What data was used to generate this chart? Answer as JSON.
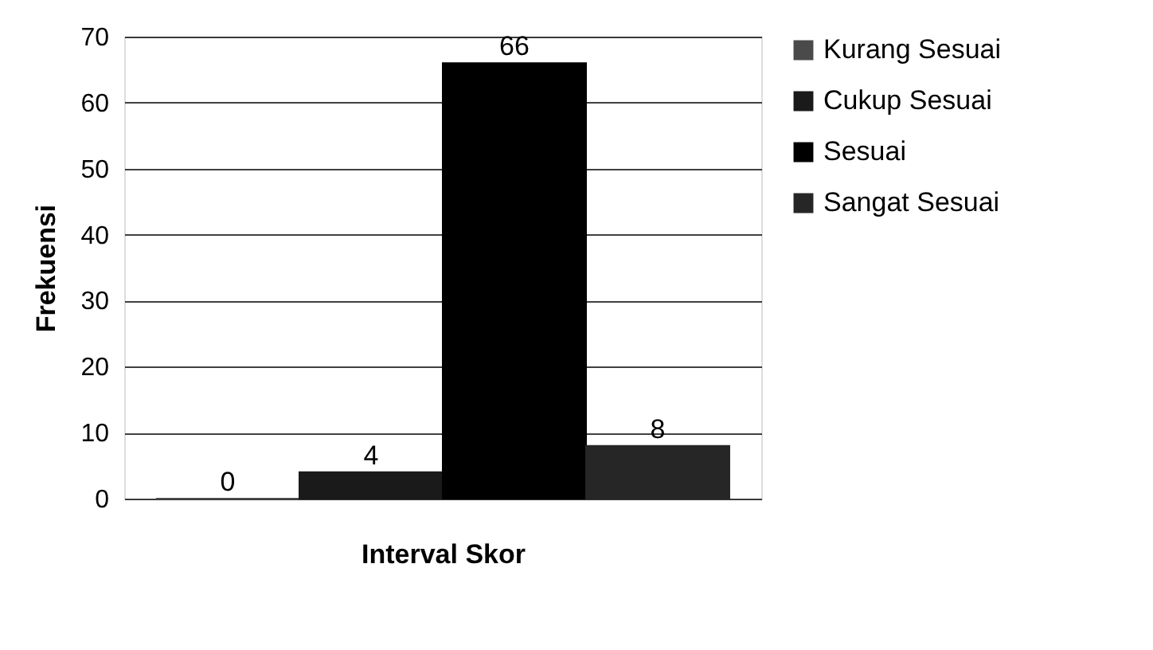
{
  "chart_data": {
    "type": "bar",
    "xlabel": "Interval Skor",
    "ylabel": "Frekuensi",
    "categories": [
      null
    ],
    "series": [
      {
        "name": "Kurang Sesuai",
        "color": "#4a4a4a",
        "values": [
          0
        ]
      },
      {
        "name": "Cukup Sesuai",
        "color": "#1a1a1a",
        "values": [
          4
        ]
      },
      {
        "name": "Sesuai",
        "color": "#000000",
        "values": [
          66
        ]
      },
      {
        "name": "Sangat Sesuai",
        "color": "#262626",
        "values": [
          8
        ]
      }
    ],
    "ylim": [
      0,
      70
    ],
    "yticks": [
      0,
      10,
      20,
      30,
      40,
      50,
      60,
      70
    ],
    "grid": "y",
    "legend": "right",
    "data_labels": true
  }
}
